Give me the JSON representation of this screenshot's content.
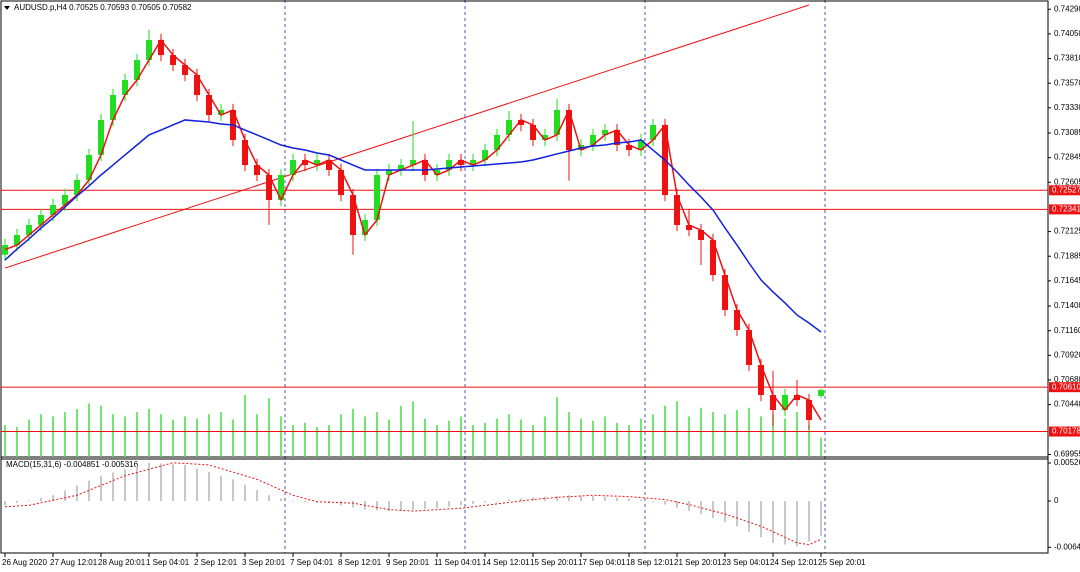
{
  "chart_data": [
    {
      "type": "candlestick",
      "title": "AUDUSD.p,H4  0.70525 0.70593 0.70505 0.70582",
      "categories": [
        "26 Aug 2020",
        null,
        null,
        null,
        "27 Aug 12:01",
        null,
        null,
        null,
        "28 Aug 20:01",
        null,
        null,
        null,
        "1 Sep 04:01",
        null,
        null,
        null,
        "2 Sep 12:01",
        null,
        null,
        null,
        "3 Sep 20:01",
        null,
        null,
        null,
        "7 Sep 04:01",
        null,
        null,
        null,
        "8 Sep 12:01",
        null,
        null,
        null,
        "9 Sep 20:01",
        null,
        null,
        null,
        "11 Sep 04:01",
        null,
        null,
        null,
        "14 Sep 12:01",
        null,
        null,
        null,
        "15 Sep 20:01",
        null,
        null,
        null,
        "17 Sep 04:01",
        null,
        null,
        null,
        "18 Sep 12:01",
        null,
        null,
        null,
        "21 Sep 20:01",
        null,
        null,
        null,
        "23 Sep 04:01",
        null,
        null,
        null,
        "24 Sep 12:01",
        null,
        null,
        null,
        "25 Sep 20:01"
      ],
      "open": [
        0.719,
        0.71994,
        0.72092,
        0.72189,
        0.72287,
        0.72384,
        0.72481,
        0.72627,
        0.72871,
        0.73212,
        0.73455,
        0.73601,
        0.73796,
        0.73991,
        0.73844,
        0.73747,
        0.7365,
        0.73455,
        0.7326,
        0.73309,
        0.73017,
        0.72773,
        0.72676,
        0.72433,
        0.72676,
        0.72822,
        0.72773,
        0.72822,
        0.72725,
        0.72481,
        0.72092,
        0.72238,
        0.72676,
        0.72725,
        0.72773,
        0.72822,
        0.72676,
        0.72725,
        0.72822,
        0.72773,
        0.72822,
        0.72919,
        0.73066,
        0.73212,
        0.73163,
        0.73017,
        0.73066,
        0.73309,
        0.72919,
        0.72968,
        0.73066,
        0.73114,
        0.72968,
        0.72919,
        0.73017,
        0.73163,
        0.72481,
        0.72189,
        0.7214,
        0.72043,
        0.71702,
        0.71362,
        0.71167,
        0.70826,
        0.70534,
        0.70388,
        0.70534,
        0.70485,
        0.70525
      ],
      "high": [
        0.72054,
        0.72152,
        0.72249,
        0.72347,
        0.72444,
        0.72541,
        0.72687,
        0.72931,
        0.73272,
        0.73515,
        0.73661,
        0.73856,
        0.7409,
        0.74051,
        0.73904,
        0.73807,
        0.7371,
        0.73515,
        0.73369,
        0.73369,
        0.73077,
        0.72833,
        0.72736,
        0.72736,
        0.72882,
        0.72882,
        0.72882,
        0.72882,
        0.72785,
        0.72541,
        0.72298,
        0.72736,
        0.72785,
        0.72833,
        0.732,
        0.72882,
        0.72785,
        0.72882,
        0.72882,
        0.72882,
        0.72979,
        0.73126,
        0.733,
        0.73272,
        0.73223,
        0.73126,
        0.7342,
        0.73369,
        0.73028,
        0.73126,
        0.73174,
        0.73174,
        0.73028,
        0.73077,
        0.73223,
        0.73223,
        0.72541,
        0.72347,
        0.722,
        0.72103,
        0.71762,
        0.71422,
        0.71227,
        0.70886,
        0.7077,
        0.70594,
        0.7068,
        0.70545,
        0.70593
      ],
      "low": [
        0.7184,
        0.71934,
        0.72032,
        0.72129,
        0.72227,
        0.72324,
        0.72421,
        0.72567,
        0.72811,
        0.73152,
        0.73395,
        0.73541,
        0.73736,
        0.73784,
        0.73687,
        0.7359,
        0.73395,
        0.732,
        0.732,
        0.72957,
        0.72713,
        0.72616,
        0.7219,
        0.72373,
        0.72616,
        0.72713,
        0.72713,
        0.72665,
        0.72421,
        0.719,
        0.72032,
        0.72178,
        0.72616,
        0.72665,
        0.72713,
        0.72616,
        0.72616,
        0.72665,
        0.72713,
        0.72713,
        0.72762,
        0.72859,
        0.73006,
        0.73103,
        0.72957,
        0.72957,
        0.73006,
        0.7262,
        0.72859,
        0.72908,
        0.73006,
        0.72908,
        0.72859,
        0.72859,
        0.72957,
        0.72421,
        0.72129,
        0.7208,
        0.718,
        0.71642,
        0.71302,
        0.71107,
        0.70766,
        0.70474,
        0.7023,
        0.70328,
        0.70425,
        0.702,
        0.70505
      ],
      "close": [
        0.71994,
        0.72092,
        0.72189,
        0.72287,
        0.72384,
        0.72481,
        0.72627,
        0.72871,
        0.73212,
        0.73455,
        0.73601,
        0.73796,
        0.73991,
        0.73844,
        0.73747,
        0.7365,
        0.73455,
        0.7326,
        0.73309,
        0.73017,
        0.72773,
        0.72676,
        0.72433,
        0.72676,
        0.72822,
        0.72773,
        0.72822,
        0.72725,
        0.72481,
        0.72092,
        0.72238,
        0.72676,
        0.72725,
        0.72773,
        0.72822,
        0.72676,
        0.72725,
        0.72822,
        0.72773,
        0.72822,
        0.72919,
        0.73066,
        0.73212,
        0.73163,
        0.73017,
        0.73066,
        0.73309,
        0.72919,
        0.72968,
        0.73066,
        0.73114,
        0.72968,
        0.72919,
        0.73017,
        0.73163,
        0.72481,
        0.72189,
        0.7214,
        0.72043,
        0.71702,
        0.71362,
        0.71167,
        0.70826,
        0.70534,
        0.70388,
        0.70534,
        0.70485,
        0.7029,
        0.70582
      ],
      "up_color": "#22dd22",
      "down_color": "#ee1111",
      "ylim": [
        0.6993,
        0.7438
      ],
      "yticks": [
        {
          "value": 0.7429,
          "label": "0.74290"
        },
        {
          "value": 0.7405,
          "label": "0.74050"
        },
        {
          "value": 0.7381,
          "label": "0.73810"
        },
        {
          "value": 0.7357,
          "label": "0.73570"
        },
        {
          "value": 0.7333,
          "label": "0.73330"
        },
        {
          "value": 0.73085,
          "label": "0.73085"
        },
        {
          "value": 0.72845,
          "label": "0.72845"
        },
        {
          "value": 0.72605,
          "label": "0.72605"
        },
        {
          "value": 0.72125,
          "label": "0.72125"
        },
        {
          "value": 0.71885,
          "label": "0.71885"
        },
        {
          "value": 0.71645,
          "label": "0.71645"
        },
        {
          "value": 0.714,
          "label": "0.71400"
        },
        {
          "value": 0.7116,
          "label": "0.71160"
        },
        {
          "value": 0.7092,
          "label": "0.70920"
        },
        {
          "value": 0.7068,
          "label": "0.70680"
        },
        {
          "value": 0.7044,
          "label": "0.70440"
        },
        {
          "value": 0.69955,
          "label": "0.69955"
        }
      ],
      "overlays": [
        {
          "color": "#ee1111",
          "values": [
            0.7195,
            0.71994,
            0.72092,
            0.72189,
            0.72287,
            0.72384,
            0.72481,
            0.72627,
            0.72871,
            0.73212,
            0.73455,
            0.73601,
            0.73796,
            0.73991,
            0.73844,
            0.73747,
            0.7365,
            0.73455,
            0.7326,
            0.73309,
            0.73017,
            0.72773,
            0.72676,
            0.72433,
            0.72676,
            0.72822,
            0.72773,
            0.72822,
            0.72725,
            0.72481,
            0.72092,
            0.72238,
            0.72676,
            0.72725,
            0.72773,
            0.72822,
            0.72676,
            0.72725,
            0.72822,
            0.72773,
            0.72822,
            0.72919,
            0.73066,
            0.73212,
            0.73163,
            0.73017,
            0.73066,
            0.73309,
            0.72919,
            0.72968,
            0.73066,
            0.73114,
            0.72968,
            0.72919,
            0.73017,
            0.73163,
            0.72481,
            0.72189,
            0.7214,
            0.72043,
            0.71702,
            0.71362,
            0.71167,
            0.70826,
            0.70534,
            0.70388,
            0.70534,
            0.70485,
            0.7029
          ]
        },
        {
          "color": "#1020dd",
          "values": [
            0.71848,
            0.71955,
            0.72053,
            0.7216,
            0.72257,
            0.72364,
            0.72472,
            0.72569,
            0.72676,
            0.72773,
            0.72871,
            0.72968,
            0.73066,
            0.73114,
            0.73163,
            0.73212,
            0.73202,
            0.73192,
            0.73173,
            0.73163,
            0.73114,
            0.73066,
            0.73017,
            0.72968,
            0.72939,
            0.72919,
            0.7289,
            0.72871,
            0.72822,
            0.72773,
            0.72725,
            0.72725,
            0.72725,
            0.72725,
            0.72725,
            0.72725,
            0.72734,
            0.72744,
            0.72754,
            0.72764,
            0.72773,
            0.72783,
            0.72793,
            0.72803,
            0.72822,
            0.72851,
            0.72881,
            0.7291,
            0.72939,
            0.72958,
            0.72968,
            0.72988,
            0.72997,
            0.73017,
            0.72919,
            0.72822,
            0.72705,
            0.72579,
            0.72462,
            0.72335,
            0.7216,
            0.71994,
            0.71819,
            0.71654,
            0.71537,
            0.7143,
            0.71313,
            0.71235,
            0.71147
          ]
        }
      ],
      "volume": {
        "color": "#44dd44",
        "values": [
          30,
          28,
          35,
          40,
          38,
          42,
          45,
          50,
          48,
          40,
          38,
          42,
          45,
          40,
          35,
          38,
          36,
          40,
          42,
          35,
          58,
          40,
          55,
          38,
          30,
          32,
          28,
          30,
          40,
          45,
          38,
          42,
          35,
          48,
          52,
          36,
          30,
          34,
          38,
          30,
          32,
          36,
          40,
          35,
          30,
          38,
          56,
          42,
          36,
          34,
          38,
          32,
          30,
          36,
          40,
          48,
          52,
          38,
          46,
          42,
          40,
          44,
          46,
          38,
          40,
          36,
          42,
          30,
          18
        ]
      },
      "levels": [
        {
          "value": 0.72527,
          "label": "0.72527"
        },
        {
          "value": 0.72341,
          "label": "0.72341"
        },
        {
          "value": 0.7061,
          "label": "0.70610"
        },
        {
          "value": 0.70178,
          "label": "0.70178"
        }
      ],
      "level_color": "#ee1111",
      "trendline": {
        "color": "#ee1111",
        "points": [
          [
            0,
            0.7177
          ],
          [
            67,
            0.74331
          ]
        ]
      }
    },
    {
      "type": "macd",
      "title": "MACD(15,31,6) -0.004851 -0.005316",
      "histogram": {
        "color": "#c8c8c8",
        "values": [
          -0.0006,
          -0.00025,
          0.0001,
          0.00045,
          0.0008,
          0.00148,
          0.00215,
          0.00283,
          0.0035,
          0.00395,
          0.0044,
          0.00485,
          0.0053,
          0.0052,
          0.0051,
          0.005,
          0.0045,
          0.004,
          0.0035,
          0.003,
          0.00227,
          0.00153,
          0.0008,
          0.00035,
          -0.0001,
          -0.00017,
          -0.00023,
          -0.0003,
          -0.0006,
          -0.0009,
          -0.0012,
          -0.0013,
          -0.0014,
          -0.0013,
          -0.0012,
          -0.0011,
          -0.001,
          -0.0008,
          -0.0006,
          -0.0004,
          -0.0002,
          0.0,
          0.0002,
          0.00035,
          0.0005,
          0.0006,
          0.0007,
          0.0008,
          0.00073,
          0.00067,
          0.0006,
          0.00047,
          0.00033,
          0.0002,
          -0.00015,
          -0.0005,
          -0.00093,
          -0.00137,
          -0.0018,
          -0.00237,
          -0.00293,
          -0.0035,
          -0.00427,
          -0.00503,
          -0.0058,
          -0.00605,
          -0.0063,
          -0.0056,
          -0.004851
        ]
      },
      "signal": {
        "color": "#ee1111",
        "values": [
          -0.0008,
          -0.0007,
          -0.0006,
          -0.00025,
          0.0001,
          0.00045,
          0.0008,
          0.00148,
          0.00215,
          0.00283,
          0.0035,
          0.00395,
          0.0044,
          0.00485,
          0.0053,
          0.0052,
          0.0051,
          0.005,
          0.0045,
          0.004,
          0.0035,
          0.003,
          0.00227,
          0.00153,
          0.0008,
          0.00035,
          -0.0001,
          -0.00017,
          -0.00023,
          -0.0003,
          -0.0006,
          -0.0009,
          -0.0012,
          -0.0013,
          -0.0014,
          -0.0013,
          -0.0012,
          -0.0011,
          -0.001,
          -0.0008,
          -0.0006,
          -0.0004,
          -0.0002,
          0.0,
          0.0002,
          0.00035,
          0.0005,
          0.0006,
          0.0007,
          0.0008,
          0.00073,
          0.00067,
          0.0006,
          0.00047,
          0.00033,
          0.0002,
          -0.00015,
          -0.0005,
          -0.00093,
          -0.00137,
          -0.0018,
          -0.00237,
          -0.00293,
          -0.0035,
          -0.00427,
          -0.00503,
          -0.0058,
          -0.00605,
          -0.005316
        ]
      },
      "ylim": [
        -0.00721,
        0.00582
      ],
      "yticks": [
        {
          "value": 0.005266,
          "label": "0.005266"
        },
        0,
        {
          "value": -0.00642,
          "label": "-0.00642"
        }
      ]
    }
  ]
}
